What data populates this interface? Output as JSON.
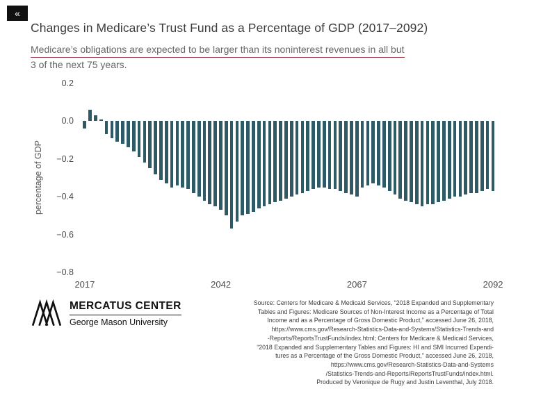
{
  "overlay": {
    "collapse_label": "«"
  },
  "header": {
    "title": "Changes in Medicare’s Trust Fund as a Percentage of GDP (2017–2092)",
    "subtitle_line1": "Medicare’s obligations are expected to be larger than its noninterest revenues in all but",
    "subtitle_line2": "3 of the next 75 years.",
    "underline_color": "#8b2332"
  },
  "chart_data": {
    "type": "bar",
    "title": "Changes in Medicare’s Trust Fund as a Percentage of GDP (2017–2092)",
    "xlabel": "",
    "ylabel": "percentage of GDP",
    "ylim": [
      -0.8,
      0.2
    ],
    "grid": false,
    "legend": "none",
    "bar_color": "#2e5a66",
    "y_ticks": [
      0.2,
      0.0,
      -0.2,
      -0.4,
      -0.6,
      -0.8
    ],
    "y_tick_labels": [
      "0.2",
      "0.0",
      "−0.2",
      "−0.4",
      "−0.6",
      "−0.8"
    ],
    "x_ticks": [
      2017,
      2042,
      2067,
      2092
    ],
    "categories": [
      2017,
      2018,
      2019,
      2020,
      2021,
      2022,
      2023,
      2024,
      2025,
      2026,
      2027,
      2028,
      2029,
      2030,
      2031,
      2032,
      2033,
      2034,
      2035,
      2036,
      2037,
      2038,
      2039,
      2040,
      2041,
      2042,
      2043,
      2044,
      2045,
      2046,
      2047,
      2048,
      2049,
      2050,
      2051,
      2052,
      2053,
      2054,
      2055,
      2056,
      2057,
      2058,
      2059,
      2060,
      2061,
      2062,
      2063,
      2064,
      2065,
      2066,
      2067,
      2068,
      2069,
      2070,
      2071,
      2072,
      2073,
      2074,
      2075,
      2076,
      2077,
      2078,
      2079,
      2080,
      2081,
      2082,
      2083,
      2084,
      2085,
      2086,
      2087,
      2088,
      2089,
      2090,
      2091,
      2092
    ],
    "values": [
      -0.04,
      0.06,
      0.03,
      0.01,
      -0.07,
      -0.09,
      -0.11,
      -0.12,
      -0.14,
      -0.16,
      -0.19,
      -0.22,
      -0.25,
      -0.28,
      -0.31,
      -0.33,
      -0.35,
      -0.34,
      -0.35,
      -0.36,
      -0.38,
      -0.4,
      -0.42,
      -0.44,
      -0.45,
      -0.47,
      -0.5,
      -0.57,
      -0.53,
      -0.5,
      -0.49,
      -0.48,
      -0.46,
      -0.45,
      -0.44,
      -0.43,
      -0.42,
      -0.41,
      -0.4,
      -0.39,
      -0.38,
      -0.37,
      -0.36,
      -0.35,
      -0.35,
      -0.36,
      -0.36,
      -0.37,
      -0.38,
      -0.39,
      -0.4,
      -0.35,
      -0.34,
      -0.33,
      -0.34,
      -0.35,
      -0.37,
      -0.39,
      -0.41,
      -0.42,
      -0.43,
      -0.44,
      -0.45,
      -0.44,
      -0.44,
      -0.43,
      -0.42,
      -0.41,
      -0.4,
      -0.4,
      -0.39,
      -0.38,
      -0.38,
      -0.37,
      -0.36,
      -0.37
    ]
  },
  "footer": {
    "logo_title": "MERCATUS CENTER",
    "logo_subtitle": "George Mason University",
    "source_lines": [
      "Source: Centers for Medicare & Medicaid Services, “2018 Expanded and Supplementary",
      "Tables and Figures: Medicare Sources of Non-Interest Income as a Percentage of Total",
      "Income and as a Percentage of Gross Domestic Product,” accessed June 26, 2018,",
      "https://www.cms.gov/Research-Statistics-Data-and-Systems/Statistics-Trends-and",
      "-Reports/ReportsTrustFunds/index.html; Centers for Medicare & Medicaid Services,",
      "“2018 Expanded and Supplementary Tables and Figures: HI and SMI Incurred Expendi-",
      "tures as a Percentage of the Gross Domestic Product,” accessed June 26, 2018,",
      "https://www.cms.gov/Research-Statistics-Data-and-Systems",
      "/Statistics-Trends-and-Reports/ReportsTrustFunds/index.html.",
      "Produced by Veronique de Rugy and Justin Leventhal, July 2018."
    ]
  }
}
